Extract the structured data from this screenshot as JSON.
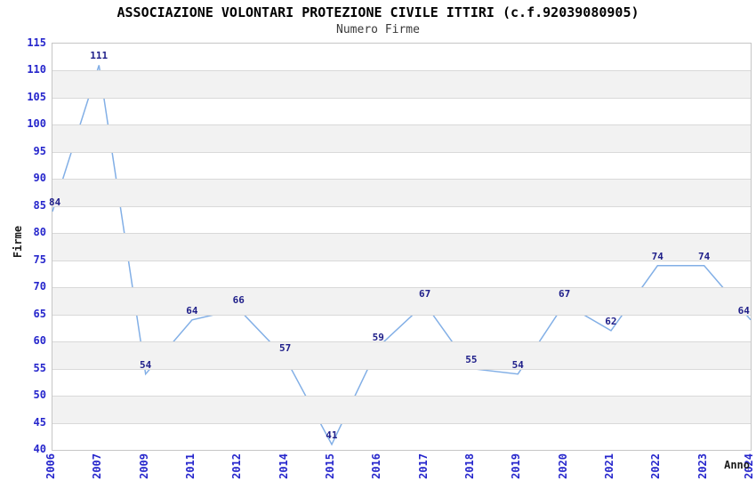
{
  "chart_data": {
    "type": "line",
    "title": "ASSOCIAZIONE VOLONTARI PROTEZIONE CIVILE ITTIRI (c.f.92039080905)",
    "subtitle": "Numero Firme",
    "xlabel": "Anno",
    "ylabel": "Firme",
    "categories": [
      "2006",
      "2007",
      "2009",
      "2011",
      "2012",
      "2014",
      "2015",
      "2016",
      "2017",
      "2018",
      "2019",
      "2020",
      "2021",
      "2022",
      "2023",
      "2024"
    ],
    "values": [
      84,
      111,
      54,
      64,
      66,
      57,
      41,
      59,
      67,
      55,
      54,
      67,
      62,
      74,
      74,
      64
    ],
    "ylim": [
      40,
      115
    ],
    "ytick_step": 5,
    "grid": true,
    "banding": true,
    "legend_position": "none",
    "value_labels_shown": true,
    "colors": {
      "line": "#82afe6",
      "band": "#f2f2f2",
      "gridline": "#d9d9d9",
      "plot_border": "#c6c6c6",
      "axis_tick_label": "#2626cc",
      "value_label": "#20208a",
      "title": "#000000",
      "subtitle": "#3a3a3a",
      "axis_title": "#1a1a1a",
      "background": "#ffffff"
    }
  }
}
